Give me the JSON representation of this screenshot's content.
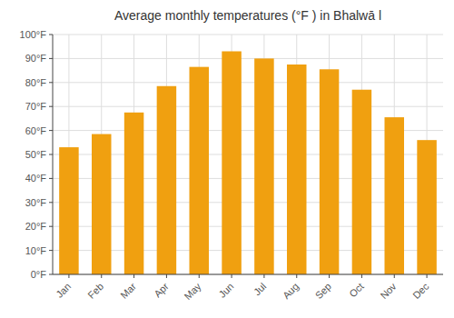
{
  "chart_data": {
    "type": "bar",
    "title": "Average monthly temperatures (°F ) in Bhalwā l",
    "categories": [
      "Jan",
      "Feb",
      "Mar",
      "Apr",
      "May",
      "Jun",
      "Jul",
      "Aug",
      "Sep",
      "Oct",
      "Nov",
      "Dec"
    ],
    "values": [
      53,
      58.5,
      67.5,
      78.5,
      86.5,
      93,
      90,
      87.5,
      85.5,
      77,
      65.5,
      56
    ],
    "color": "#F0A010",
    "ylim": [
      0,
      100
    ],
    "yticks": [
      {
        "value": 0,
        "label": "0°F"
      },
      {
        "value": 10,
        "label": "10°F"
      },
      {
        "value": 20,
        "label": "20°F"
      },
      {
        "value": 30,
        "label": "30°F"
      },
      {
        "value": 40,
        "label": "40°F"
      },
      {
        "value": 50,
        "label": "50°F"
      },
      {
        "value": 60,
        "label": "60°F"
      },
      {
        "value": 70,
        "label": "70°F"
      },
      {
        "value": 80,
        "label": "80°F"
      },
      {
        "value": 90,
        "label": "90°F"
      },
      {
        "value": 100,
        "label": "100°F"
      }
    ],
    "grid": true
  }
}
